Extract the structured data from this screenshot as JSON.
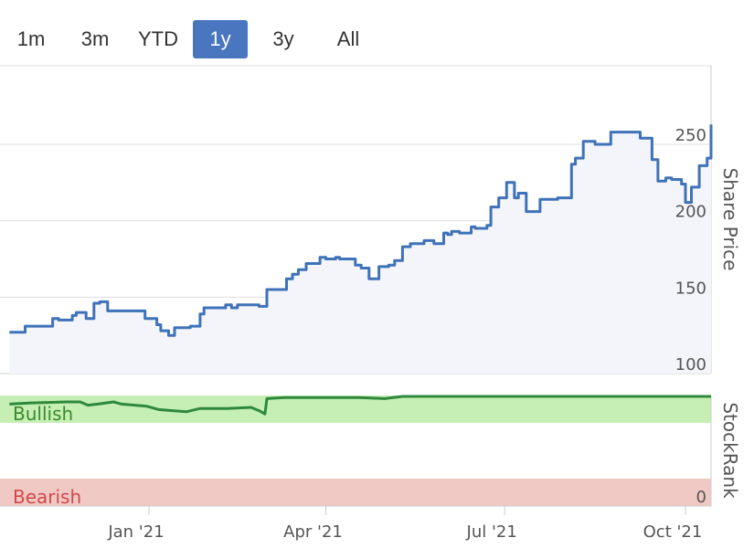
{
  "range_selector": {
    "buttons": [
      {
        "label": "1m",
        "active": false
      },
      {
        "label": "3m",
        "active": false
      },
      {
        "label": "YTD",
        "active": false
      },
      {
        "label": "1y",
        "active": true
      },
      {
        "label": "3y",
        "active": false
      },
      {
        "label": "All",
        "active": false
      }
    ]
  },
  "colors": {
    "accent": "#4a76c0",
    "price_line": "#3f72b8",
    "price_fill": "#f3f5fa",
    "bullish_band": "#c6efb4",
    "bearish_band": "#f0c9c5",
    "rank_line": "#2e8a3a",
    "bullish_text": "#3a8a2e",
    "bearish_text": "#d04848",
    "grid": "#dddddd",
    "axis_text": "#555555"
  },
  "chart_data": [
    {
      "type": "line",
      "ylabel": "Share Price",
      "ylim": [
        100,
        265
      ],
      "yticks": [
        100,
        150,
        200,
        250
      ],
      "series": [
        {
          "x": [
            "2020-10-22",
            "2020-10-27",
            "2020-10-30",
            "2020-11-06",
            "2020-11-13",
            "2020-11-16",
            "2020-11-23",
            "2020-11-25",
            "2020-11-30",
            "2020-12-04",
            "2020-12-07",
            "2020-12-11",
            "2020-12-14",
            "2020-12-18",
            "2020-12-21",
            "2020-12-30",
            "2021-01-05",
            "2021-01-07",
            "2021-01-11",
            "2021-01-14",
            "2021-01-19",
            "2021-01-22",
            "2021-01-27",
            "2021-01-29",
            "2021-02-02",
            "2021-02-04",
            "2021-02-09",
            "2021-02-12",
            "2021-02-15",
            "2021-02-19",
            "2021-02-23",
            "2021-02-26",
            "2021-03-02",
            "2021-03-04",
            "2021-03-12",
            "2021-03-15",
            "2021-03-18",
            "2021-03-22",
            "2021-03-25",
            "2021-03-29",
            "2021-04-01",
            "2021-04-06",
            "2021-04-08",
            "2021-04-16",
            "2021-04-19",
            "2021-04-23",
            "2021-04-28",
            "2021-05-03",
            "2021-05-06",
            "2021-05-10",
            "2021-05-14",
            "2021-05-21",
            "2021-05-26",
            "2021-05-31",
            "2021-06-02",
            "2021-06-04",
            "2021-06-08",
            "2021-06-14",
            "2021-06-16",
            "2021-06-22",
            "2021-06-24",
            "2021-06-28",
            "2021-07-02",
            "2021-07-06",
            "2021-07-08",
            "2021-07-12",
            "2021-07-14",
            "2021-07-19",
            "2021-07-23",
            "2021-07-28",
            "2021-08-04",
            "2021-08-06",
            "2021-08-10",
            "2021-08-16",
            "2021-08-20",
            "2021-08-24",
            "2021-08-27",
            "2021-08-31",
            "2021-09-08",
            "2021-09-14",
            "2021-09-17",
            "2021-09-21",
            "2021-09-24",
            "2021-09-29",
            "2021-10-01",
            "2021-10-04",
            "2021-10-08",
            "2021-10-12",
            "2021-10-14"
          ],
          "y": [
            127,
            127,
            131,
            131,
            136,
            135,
            138,
            140,
            136,
            146,
            147,
            141,
            141,
            141,
            141,
            136,
            132,
            128,
            125,
            130,
            130,
            131,
            139,
            143,
            143,
            143,
            145,
            143,
            145,
            145,
            145,
            144,
            155,
            155,
            162,
            165,
            168,
            172,
            172,
            176,
            175,
            176,
            175,
            171,
            169,
            162,
            170,
            171,
            174,
            183,
            185,
            187,
            185,
            192,
            191,
            193,
            192,
            196,
            195,
            197,
            209,
            215,
            225,
            215,
            218,
            206,
            206,
            214,
            214,
            215,
            237,
            241,
            252,
            250,
            250,
            258,
            258,
            258,
            254,
            240,
            226,
            228,
            227,
            224,
            212,
            222,
            236,
            241,
            263
          ]
        }
      ]
    },
    {
      "type": "area",
      "ylabel": "StockRank",
      "yticks": [
        0
      ],
      "annotations": [
        "Bullish",
        "Bearish"
      ],
      "series": [
        {
          "x": [
            "2020-10-22",
            "2020-11-01",
            "2020-11-20",
            "2020-11-27",
            "2020-12-01",
            "2020-12-06",
            "2020-12-14",
            "2020-12-18",
            "2020-12-31",
            "2021-01-06",
            "2021-01-13",
            "2021-01-20",
            "2021-01-27",
            "2021-02-10",
            "2021-02-22",
            "2021-02-26",
            "2021-03-01",
            "2021-03-02",
            "2021-03-11",
            "2021-03-30",
            "2021-04-18",
            "2021-05-01",
            "2021-05-10",
            "2021-10-14"
          ],
          "y": [
            93,
            94,
            95,
            95,
            92,
            93,
            95,
            93,
            91,
            88,
            87,
            86,
            89,
            89,
            90,
            87,
            84,
            98,
            99,
            99,
            99,
            98,
            100,
            100
          ]
        }
      ]
    }
  ],
  "x_axis": {
    "ticks": [
      {
        "label": "Jan '21",
        "date": "2021-01-01"
      },
      {
        "label": "Apr '21",
        "date": "2021-04-01"
      },
      {
        "label": "Jul '21",
        "date": "2021-07-01"
      },
      {
        "label": "Oct '21",
        "date": "2021-10-01"
      }
    ]
  }
}
